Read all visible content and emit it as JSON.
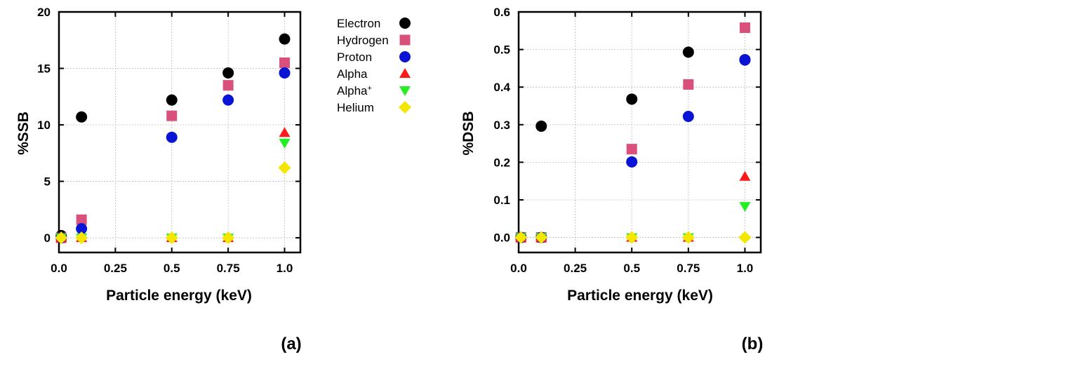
{
  "legend": [
    {
      "name": "Electron",
      "marker": "circle",
      "color": "#000000"
    },
    {
      "name": "Hydrogen",
      "marker": "square",
      "color": "#d9507a"
    },
    {
      "name": "Proton",
      "marker": "circle",
      "color": "#0a14d4"
    },
    {
      "name": "Alpha",
      "marker": "triangle-up",
      "color": "#ff1a1a"
    },
    {
      "name": "Alpha",
      "sup": "+",
      "marker": "triangle-down",
      "color": "#22ee22"
    },
    {
      "name": "Helium",
      "marker": "diamond",
      "color": "#f5e600"
    }
  ],
  "chart_data": [
    {
      "type": "scatter",
      "panel_label": "(a)",
      "xlabel": "Particle energy (keV)",
      "ylabel": "%SSB",
      "xlim": [
        0,
        1.07
      ],
      "ylim": [
        -1.3,
        20
      ],
      "xticks": [
        0.0,
        0.25,
        0.5,
        0.75,
        1.0
      ],
      "xtick_labels": [
        "0.0",
        "0.25",
        "0.5",
        "0.75",
        "1.0"
      ],
      "yticks": [
        0,
        5,
        10,
        15,
        20
      ],
      "ytick_labels": [
        "0",
        "5",
        "10",
        "15",
        "20"
      ],
      "grid": true,
      "x": [
        0.01,
        0.1,
        0.5,
        0.75,
        1.0
      ],
      "series": [
        {
          "name": "Electron",
          "values": [
            0.2,
            10.7,
            12.2,
            14.6,
            17.6
          ]
        },
        {
          "name": "Hydrogen",
          "values": [
            0,
            1.6,
            10.8,
            13.5,
            15.5
          ]
        },
        {
          "name": "Proton",
          "values": [
            0,
            0.8,
            8.9,
            12.2,
            14.6
          ]
        },
        {
          "name": "Alpha",
          "values": [
            0,
            0,
            0,
            0,
            9.3
          ]
        },
        {
          "name": "Alpha+",
          "values": [
            0,
            0,
            0,
            0,
            8.4
          ]
        },
        {
          "name": "Helium",
          "values": [
            0,
            0,
            0,
            0,
            6.2
          ]
        }
      ]
    },
    {
      "type": "scatter",
      "panel_label": "(b)",
      "xlabel": "Particle energy (keV)",
      "ylabel": "%DSB",
      "xlim": [
        0,
        1.07
      ],
      "ylim": [
        -0.04,
        0.6
      ],
      "xticks": [
        0.0,
        0.25,
        0.5,
        0.75,
        1.0
      ],
      "xtick_labels": [
        "0.0",
        "0.25",
        "0.5",
        "0.75",
        "1.0"
      ],
      "yticks": [
        0.0,
        0.1,
        0.2,
        0.3,
        0.4,
        0.5,
        0.6
      ],
      "ytick_labels": [
        "0.0",
        "0.1",
        "0.2",
        "0.3",
        "0.4",
        "0.5",
        "0.6"
      ],
      "grid": true,
      "x": [
        0.01,
        0.1,
        0.5,
        0.75,
        1.0
      ],
      "series": [
        {
          "name": "Electron",
          "values": [
            0,
            0.296,
            0.368,
            0.493,
            0.473
          ]
        },
        {
          "name": "Hydrogen",
          "values": [
            0,
            0,
            0.235,
            0.407,
            0.558
          ]
        },
        {
          "name": "Proton",
          "values": [
            0,
            0,
            0.201,
            0.322,
            0.472
          ]
        },
        {
          "name": "Alpha",
          "values": [
            0,
            0,
            0,
            0,
            0.162
          ]
        },
        {
          "name": "Alpha+",
          "values": [
            0,
            0,
            0,
            0,
            0.083
          ]
        },
        {
          "name": "Helium",
          "values": [
            0,
            0,
            0,
            0,
            0
          ]
        }
      ]
    }
  ]
}
